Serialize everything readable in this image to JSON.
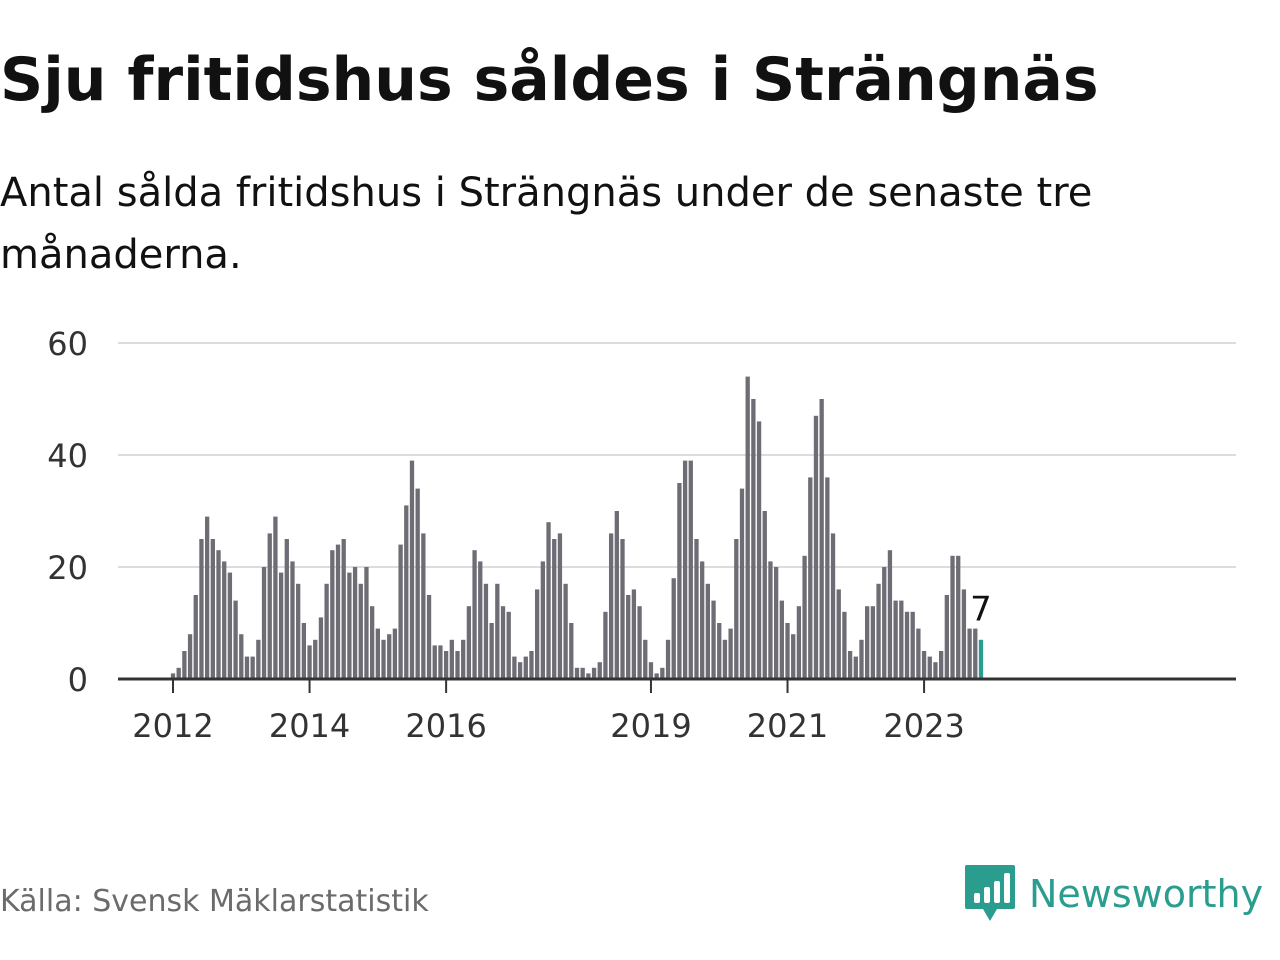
{
  "title": "Sju fritidshus såldes i Strängnäs",
  "subtitle": "Antal sålda fritidshus i Strängnäs under de senaste tre månaderna.",
  "source": "Källa: Svensk Mäklarstatistik",
  "brand": {
    "name": "Newsworthy",
    "icon": "newsworthy-logo-icon"
  },
  "colors": {
    "bar": "#6e6d75",
    "highlight": "#2a9d8f",
    "grid": "#dcdcdc",
    "axis": "#333333",
    "text": "#333333"
  },
  "chart_data": {
    "type": "bar",
    "title": "",
    "xlabel": "",
    "ylabel": "",
    "ylim": [
      0,
      60
    ],
    "yticks": [
      "0",
      "20",
      "40",
      "60"
    ],
    "xticks": [
      {
        "label": "2012",
        "index": 0
      },
      {
        "label": "2014",
        "index": 24
      },
      {
        "label": "2016",
        "index": 48
      },
      {
        "label": "2019",
        "index": 84
      },
      {
        "label": "2021",
        "index": 108
      },
      {
        "label": "2023",
        "index": 132
      }
    ],
    "grid": true,
    "legend": "none",
    "series": [
      {
        "values": [
          1,
          2,
          5,
          8,
          15,
          25,
          29,
          25,
          23,
          21,
          19,
          14,
          8,
          4,
          4,
          7,
          20,
          26,
          29,
          19,
          25,
          21,
          17,
          10,
          6,
          7,
          11,
          17,
          23,
          24,
          25,
          19,
          20,
          17,
          20,
          13,
          9,
          7,
          8,
          9,
          24,
          31,
          39,
          34,
          26,
          15,
          6,
          6,
          5,
          7,
          5,
          7,
          13,
          23,
          21,
          17,
          10,
          17,
          13,
          12,
          4,
          3,
          4,
          5,
          16,
          21,
          28,
          25,
          26,
          17,
          10,
          2,
          2,
          1,
          2,
          3,
          12,
          26,
          30,
          25,
          15,
          16,
          13,
          7,
          3,
          1,
          2,
          7,
          18,
          35,
          39,
          39,
          25,
          21,
          17,
          14,
          10,
          7,
          9,
          25,
          34,
          54,
          50,
          46,
          30,
          21,
          20,
          14,
          10,
          8,
          13,
          22,
          36,
          47,
          50,
          36,
          26,
          16,
          12,
          5,
          4,
          7,
          13,
          13,
          17,
          20,
          23,
          14,
          14,
          12,
          12,
          9,
          5,
          4,
          3,
          5,
          15,
          22,
          22,
          16,
          9,
          9,
          7
        ]
      }
    ],
    "highlight": {
      "index": 142,
      "value": 7,
      "label": "7"
    }
  }
}
